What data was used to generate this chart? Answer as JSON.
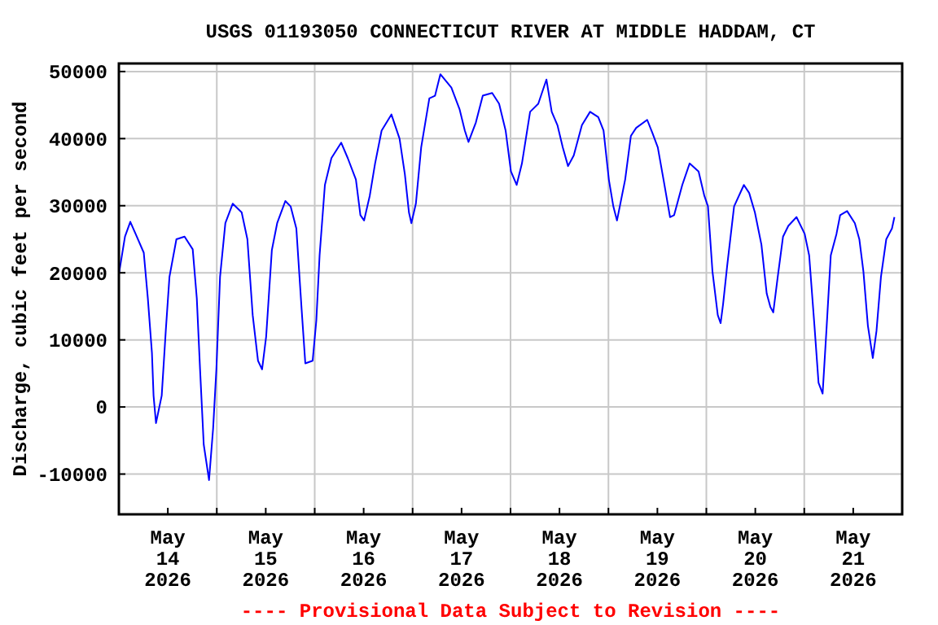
{
  "chart_data": {
    "type": "line",
    "title": "USGS 01193050 CONNECTICUT RIVER AT MIDDLE HADDAM, CT",
    "ylabel": "Discharge, cubic feet per second",
    "annotations": [
      "---- Provisional Data Subject to Revision ----"
    ],
    "xlim": [
      "2026-05-14T00:00",
      "2026-05-22T00:00"
    ],
    "xticks": [
      {
        "value": "2026-05-14T00:00",
        "label": null
      },
      {
        "value": "2026-05-14T12:00",
        "label": "May\n14\n2026"
      },
      {
        "value": "2026-05-15T00:00",
        "label": null
      },
      {
        "value": "2026-05-15T12:00",
        "label": "May\n15\n2026"
      },
      {
        "value": "2026-05-16T00:00",
        "label": null
      },
      {
        "value": "2026-05-16T12:00",
        "label": "May\n16\n2026"
      },
      {
        "value": "2026-05-17T00:00",
        "label": null
      },
      {
        "value": "2026-05-17T12:00",
        "label": "May\n17\n2026"
      },
      {
        "value": "2026-05-18T00:00",
        "label": null
      },
      {
        "value": "2026-05-18T12:00",
        "label": "May\n18\n2026"
      },
      {
        "value": "2026-05-19T00:00",
        "label": null
      },
      {
        "value": "2026-05-19T12:00",
        "label": "May\n19\n2026"
      },
      {
        "value": "2026-05-20T00:00",
        "label": null
      },
      {
        "value": "2026-05-20T12:00",
        "label": "May\n20\n2026"
      },
      {
        "value": "2026-05-21T00:00",
        "label": null
      },
      {
        "value": "2026-05-21T12:00",
        "label": "May\n21\n2026"
      },
      {
        "value": "2026-05-22T00:00",
        "label": null
      }
    ],
    "ylim": [
      -16000,
      51200
    ],
    "yticks": [
      -10000,
      0,
      10000,
      20000,
      30000,
      40000,
      50000
    ],
    "grid": true,
    "marker": "none",
    "line_style": "solid",
    "series": [
      {
        "color": "#0000ff",
        "x": [
          "2026-05-14T00:00",
          "2026-05-14T01:30",
          "2026-05-14T02:48",
          "2026-05-14T04:06",
          "2026-05-14T06:06",
          "2026-05-14T07:06",
          "2026-05-14T08:06",
          "2026-05-14T08:30",
          "2026-05-14T09:06",
          "2026-05-14T10:30",
          "2026-05-14T11:30",
          "2026-05-14T12:24",
          "2026-05-14T14:06",
          "2026-05-14T16:06",
          "2026-05-14T18:06",
          "2026-05-14T19:06",
          "2026-05-14T19:54",
          "2026-05-14T20:48",
          "2026-05-14T22:06",
          "2026-05-14T23:06",
          "2026-05-14T23:54",
          "2026-05-15T00:48",
          "2026-05-15T02:06",
          "2026-05-15T03:54",
          "2026-05-15T06:06",
          "2026-05-15T07:30",
          "2026-05-15T08:48",
          "2026-05-15T10:06",
          "2026-05-15T11:06",
          "2026-05-15T12:06",
          "2026-05-15T13:30",
          "2026-05-15T14:48",
          "2026-05-15T16:48",
          "2026-05-15T18:06",
          "2026-05-15T19:30",
          "2026-05-15T20:48",
          "2026-05-15T21:42",
          "2026-05-15T23:30",
          "2026-05-16T00:24",
          "2026-05-16T01:12",
          "2026-05-16T02:30",
          "2026-05-16T04:06",
          "2026-05-16T06:30",
          "2026-05-16T08:06",
          "2026-05-16T10:06",
          "2026-05-16T11:12",
          "2026-05-16T12:06",
          "2026-05-16T13:30",
          "2026-05-16T14:48",
          "2026-05-16T16:24",
          "2026-05-16T18:48",
          "2026-05-16T20:48",
          "2026-05-16T22:06",
          "2026-05-16T23:06",
          "2026-05-16T23:42",
          "2026-05-17T00:48",
          "2026-05-17T02:06",
          "2026-05-17T04:06",
          "2026-05-17T05:30",
          "2026-05-17T06:48",
          "2026-05-17T09:30",
          "2026-05-17T11:30",
          "2026-05-17T12:48",
          "2026-05-17T13:42",
          "2026-05-17T15:30",
          "2026-05-17T17:12",
          "2026-05-17T19:30",
          "2026-05-17T21:12",
          "2026-05-17T22:48",
          "2026-05-18T00:06",
          "2026-05-18T01:30",
          "2026-05-18T02:48",
          "2026-05-18T04:48",
          "2026-05-18T06:48",
          "2026-05-18T08:48",
          "2026-05-18T10:06",
          "2026-05-18T11:30",
          "2026-05-18T12:48",
          "2026-05-18T14:06",
          "2026-05-18T15:30",
          "2026-05-18T17:30",
          "2026-05-18T19:30",
          "2026-05-18T21:30",
          "2026-05-18T22:48",
          "2026-05-19T00:06",
          "2026-05-19T01:12",
          "2026-05-19T02:06",
          "2026-05-19T04:06",
          "2026-05-19T05:30",
          "2026-05-19T06:48",
          "2026-05-19T09:30",
          "2026-05-19T10:48",
          "2026-05-19T12:06",
          "2026-05-19T13:30",
          "2026-05-19T15:06",
          "2026-05-19T16:06",
          "2026-05-19T18:06",
          "2026-05-19T19:54",
          "2026-05-19T22:06",
          "2026-05-19T23:30",
          "2026-05-20T00:24",
          "2026-05-20T01:30",
          "2026-05-20T02:48",
          "2026-05-20T03:30",
          "2026-05-20T04:06",
          "2026-05-20T05:06",
          "2026-05-20T06:48",
          "2026-05-20T09:12",
          "2026-05-20T10:30",
          "2026-05-20T11:54",
          "2026-05-20T13:30",
          "2026-05-20T14:48",
          "2026-05-20T15:42",
          "2026-05-20T16:24",
          "2026-05-20T17:30",
          "2026-05-20T18:48",
          "2026-05-20T20:06",
          "2026-05-20T22:06",
          "2026-05-21T00:06",
          "2026-05-21T01:12",
          "2026-05-21T02:30",
          "2026-05-21T03:30",
          "2026-05-21T04:30",
          "2026-05-21T05:30",
          "2026-05-21T06:30",
          "2026-05-21T07:54",
          "2026-05-21T08:48",
          "2026-05-21T10:30",
          "2026-05-21T12:24",
          "2026-05-21T13:30",
          "2026-05-21T14:30",
          "2026-05-21T15:36",
          "2026-05-21T16:48",
          "2026-05-21T17:42",
          "2026-05-21T18:48",
          "2026-05-21T20:06",
          "2026-05-21T21:30",
          "2026-05-21T22:06"
        ],
        "values": [
          19800,
          25400,
          27600,
          25800,
          23000,
          16200,
          8100,
          1700,
          -2400,
          1700,
          11400,
          19400,
          25000,
          25400,
          23500,
          16200,
          5600,
          -5600,
          -10900,
          -3200,
          5600,
          19400,
          27400,
          30300,
          29000,
          25000,
          13700,
          6900,
          5600,
          10500,
          23400,
          27400,
          30700,
          29900,
          26600,
          14500,
          6500,
          6900,
          12900,
          22600,
          33100,
          37100,
          39400,
          37100,
          33900,
          28600,
          27800,
          31500,
          36300,
          41200,
          43600,
          40000,
          34700,
          29000,
          27400,
          30300,
          38700,
          46000,
          46400,
          49600,
          47600,
          44400,
          41200,
          39500,
          42400,
          46400,
          46800,
          45200,
          41200,
          35100,
          33100,
          36300,
          44000,
          45200,
          48800,
          44000,
          42000,
          38700,
          35900,
          37500,
          42000,
          44000,
          43200,
          41200,
          33900,
          29900,
          27800,
          33900,
          40400,
          41600,
          42800,
          40800,
          38700,
          33900,
          28300,
          28600,
          33100,
          36300,
          35100,
          31500,
          29900,
          20200,
          13700,
          12500,
          15300,
          21000,
          29900,
          33100,
          31900,
          29000,
          24200,
          16900,
          14900,
          14100,
          19400,
          25400,
          27000,
          28300,
          25800,
          22600,
          12100,
          3600,
          2000,
          12100,
          22600,
          25800,
          28600,
          29200,
          27400,
          25000,
          20200,
          12100,
          7300,
          11300,
          19400,
          25000,
          26600,
          28300
        ]
      }
    ]
  }
}
